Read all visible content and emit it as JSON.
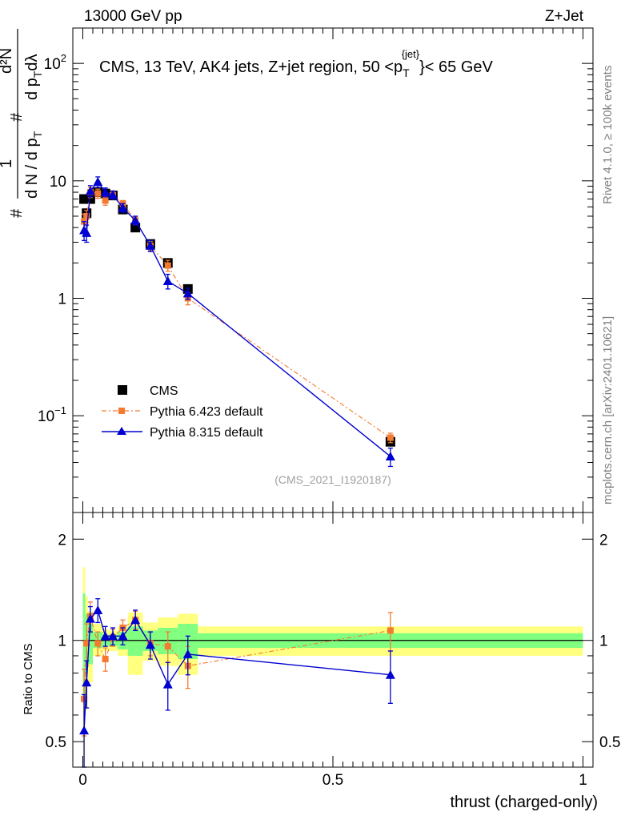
{
  "header": {
    "energy": "13000 GeV pp",
    "process": "Z+Jet"
  },
  "side_labels": {
    "rivet": "Rivet 4.1.0, ≥ 100k events",
    "mcplots": "mcplots.cern.ch [arXiv:2401.10621]"
  },
  "watermark": "(CMS_2021_I1920187)",
  "colors": {
    "cms": "#000000",
    "py6": "#f47a30",
    "py8": "#0000d0",
    "band_outer": "#ffff80",
    "band_inner": "#80ff80"
  },
  "chart_data": [
    {
      "type": "scatter",
      "panel": "main",
      "title": "CMS, 13 TeV, AK4 jets, Z+jet region, 50 <p_T^{jet}< 65 GeV",
      "title_parts": {
        "prefix": "CMS, 13 TeV, AK4 jets, Z+jet region, 50 <p",
        "sub": "T",
        "sup": "{jet}",
        "suffix": "}< 65 GeV"
      },
      "ylabel_parts": {
        "hash": "#",
        "num": "1",
        "den": "d N / d p",
        "den_sub": "T",
        "num2": "d²N",
        "den2": "d p",
        "den2_sub": "T",
        "den2_tail": "dλ"
      },
      "yscale": "log",
      "ylim": [
        0.015,
        200
      ],
      "xlim": [
        -0.02,
        1.02
      ],
      "y_ticks": [
        {
          "value": 0.1,
          "label": "10",
          "exp": "−1"
        },
        {
          "value": 1,
          "label": "1",
          "exp": ""
        },
        {
          "value": 10,
          "label": "10",
          "exp": ""
        },
        {
          "value": 100,
          "label": "10",
          "exp": "2"
        }
      ],
      "legend": [
        {
          "key": "cms",
          "label": "CMS"
        },
        {
          "key": "py6",
          "label": "Pythia 6.423 default"
        },
        {
          "key": "py8",
          "label": "Pythia 8.315 default"
        }
      ],
      "series": [
        {
          "name": "CMS",
          "key": "cms",
          "x": [
            0.0025,
            0.0075,
            0.015,
            0.03,
            0.045,
            0.06,
            0.08,
            0.105,
            0.135,
            0.17,
            0.21,
            0.615
          ],
          "y": [
            7.0,
            5.3,
            7.0,
            8.0,
            7.8,
            7.5,
            5.7,
            4.0,
            2.9,
            2.0,
            1.2,
            0.06
          ],
          "yerr": [
            0.2,
            0.2,
            0.2,
            0.2,
            0.2,
            0.2,
            0.15,
            0.1,
            0.08,
            0.05,
            0.04,
            0.003
          ]
        },
        {
          "name": "Pythia 6.423 default",
          "key": "py6",
          "x": [
            0.0025,
            0.0075,
            0.015,
            0.03,
            0.045,
            0.06,
            0.08,
            0.105,
            0.135,
            0.17,
            0.21,
            0.615
          ],
          "y": [
            4.5,
            5.0,
            8.0,
            7.8,
            6.8,
            7.5,
            6.4,
            4.6,
            2.8,
            1.9,
            1.0,
            0.065
          ],
          "yerr": [
            0.7,
            0.6,
            0.8,
            0.7,
            0.6,
            0.5,
            0.4,
            0.35,
            0.25,
            0.2,
            0.12,
            0.006
          ]
        },
        {
          "name": "Pythia 8.315 default",
          "key": "py8",
          "x": [
            0.0025,
            0.0075,
            0.015,
            0.03,
            0.045,
            0.06,
            0.08,
            0.105,
            0.135,
            0.17,
            0.21,
            0.615
          ],
          "y": [
            3.8,
            3.6,
            8.2,
            9.8,
            8.0,
            7.6,
            5.9,
            4.6,
            2.8,
            1.4,
            1.1,
            0.045
          ],
          "yerr": [
            0.7,
            0.6,
            0.9,
            1.0,
            0.7,
            0.6,
            0.5,
            0.4,
            0.3,
            0.2,
            0.12,
            0.008
          ]
        }
      ]
    },
    {
      "type": "scatter",
      "panel": "ratio",
      "ylabel": "Ratio to CMS",
      "xlabel": "thrust (charged-only)",
      "yscale": "log",
      "ylim": [
        0.42,
        2.4
      ],
      "xlim": [
        -0.02,
        1.02
      ],
      "x_ticks": [
        {
          "value": 0,
          "label": "0"
        },
        {
          "value": 0.5,
          "label": "0.5"
        },
        {
          "value": 1,
          "label": "1"
        }
      ],
      "y_ticks": [
        {
          "value": 0.5,
          "label": "0.5"
        },
        {
          "value": 1,
          "label": "1"
        },
        {
          "value": 2,
          "label": "2"
        }
      ],
      "bands": [
        {
          "xlo": 0.0,
          "xhi": 0.005,
          "inner": [
            0.65,
            1.38
          ],
          "outer": [
            0.35,
            1.65
          ]
        },
        {
          "xlo": 0.005,
          "xhi": 0.01,
          "inner": [
            0.8,
            1.2
          ],
          "outer": [
            0.62,
            1.35
          ]
        },
        {
          "xlo": 0.01,
          "xhi": 0.02,
          "inner": [
            0.85,
            1.12
          ],
          "outer": [
            0.75,
            1.22
          ]
        },
        {
          "xlo": 0.02,
          "xhi": 0.04,
          "inner": [
            0.95,
            1.06
          ],
          "outer": [
            0.9,
            1.12
          ]
        },
        {
          "xlo": 0.04,
          "xhi": 0.05,
          "inner": [
            0.96,
            1.04
          ],
          "outer": [
            0.93,
            1.08
          ]
        },
        {
          "xlo": 0.05,
          "xhi": 0.07,
          "inner": [
            0.96,
            1.04
          ],
          "outer": [
            0.93,
            1.07
          ]
        },
        {
          "xlo": 0.07,
          "xhi": 0.09,
          "inner": [
            0.94,
            1.06
          ],
          "outer": [
            0.9,
            1.1
          ]
        },
        {
          "xlo": 0.09,
          "xhi": 0.12,
          "inner": [
            0.9,
            1.1
          ],
          "outer": [
            0.79,
            1.21
          ]
        },
        {
          "xlo": 0.12,
          "xhi": 0.15,
          "inner": [
            0.93,
            1.07
          ],
          "outer": [
            0.87,
            1.13
          ]
        },
        {
          "xlo": 0.15,
          "xhi": 0.19,
          "inner": [
            0.91,
            1.09
          ],
          "outer": [
            0.84,
            1.17
          ]
        },
        {
          "xlo": 0.19,
          "xhi": 0.23,
          "inner": [
            0.88,
            1.12
          ],
          "outer": [
            0.79,
            1.2
          ]
        },
        {
          "xlo": 0.23,
          "xhi": 1.0,
          "inner": [
            0.95,
            1.05
          ],
          "outer": [
            0.9,
            1.1
          ]
        }
      ],
      "series": [
        {
          "name": "Pythia 6.423 default",
          "key": "py6",
          "x": [
            0.0025,
            0.0075,
            0.015,
            0.03,
            0.045,
            0.06,
            0.08,
            0.105,
            0.135,
            0.17,
            0.21,
            0.615
          ],
          "y": [
            0.67,
            0.98,
            1.18,
            0.98,
            0.88,
            1.02,
            1.09,
            1.15,
            0.98,
            0.96,
            0.84,
            1.07
          ],
          "yerr": [
            0.15,
            0.14,
            0.12,
            0.08,
            0.07,
            0.06,
            0.06,
            0.07,
            0.08,
            0.1,
            0.12,
            0.14
          ]
        },
        {
          "name": "Pythia 8.315 default",
          "key": "py8",
          "x": [
            0.0025,
            0.0075,
            0.015,
            0.03,
            0.045,
            0.06,
            0.08,
            0.105,
            0.135,
            0.17,
            0.21,
            0.615
          ],
          "y": [
            0.54,
            0.75,
            1.16,
            1.23,
            1.03,
            1.03,
            1.03,
            1.15,
            0.97,
            0.74,
            0.91,
            0.79
          ],
          "yerr": [
            0.15,
            0.12,
            0.1,
            0.1,
            0.07,
            0.06,
            0.06,
            0.08,
            0.09,
            0.12,
            0.12,
            0.14
          ]
        }
      ]
    }
  ]
}
